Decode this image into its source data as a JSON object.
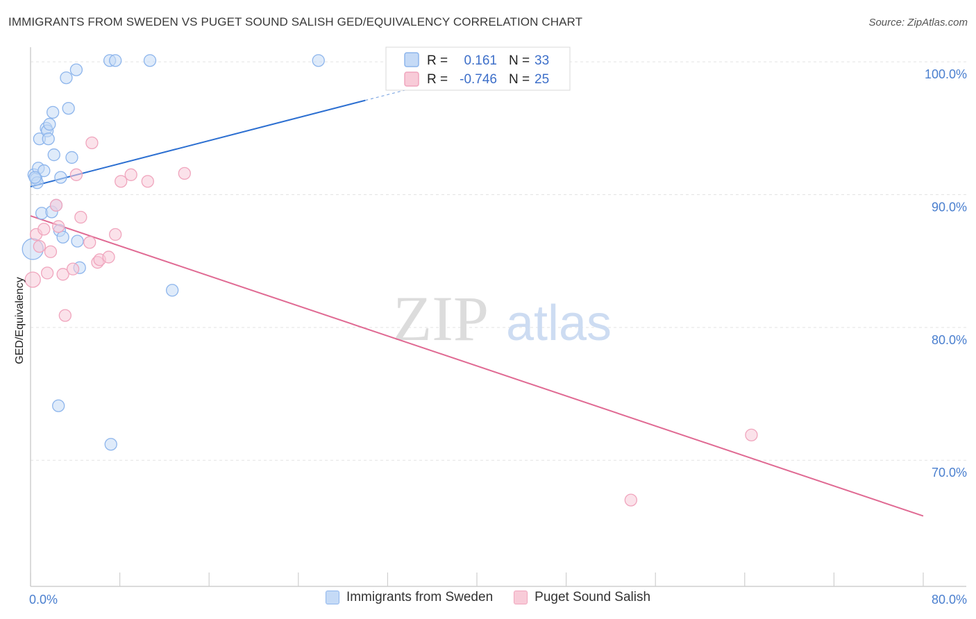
{
  "chart_data": {
    "type": "scatter",
    "title": "IMMIGRANTS FROM SWEDEN VS PUGET SOUND SALISH GED/EQUIVALENCY CORRELATION CHART",
    "source": "Source: ZipAtlas.com",
    "ylabel": "GED/Equivalency",
    "xlabel": "",
    "xlim": [
      0,
      80
    ],
    "ylim": [
      60.5,
      101
    ],
    "x_ticks": [
      "0.0%",
      "80.0%"
    ],
    "y_ticks": [
      {
        "value": 100,
        "label": "100.0%"
      },
      {
        "value": 90,
        "label": "90.0%"
      },
      {
        "value": 80,
        "label": "80.0%"
      },
      {
        "value": 70,
        "label": "70.0%"
      }
    ],
    "watermark": "ZIPatlas",
    "series": [
      {
        "name": "Immigrants from Sweden",
        "color": "#8db5ec",
        "fill": "#c5daf6",
        "line_color": "#2c6fd1",
        "R": "0.161",
        "N": "33",
        "trend": {
          "x": [
            0,
            30
          ],
          "y": [
            90.6,
            97.1
          ]
        },
        "trend_dashed": {
          "x": [
            30,
            80
          ],
          "y": [
            97.1,
            107.9
          ]
        },
        "points": [
          [
            0.2,
            85.9
          ],
          [
            0.3,
            91.5
          ],
          [
            0.5,
            91.2
          ],
          [
            0.6,
            90.9
          ],
          [
            0.7,
            92.0
          ],
          [
            0.8,
            94.2
          ],
          [
            1.0,
            88.6
          ],
          [
            1.2,
            91.8
          ],
          [
            1.4,
            95.0
          ],
          [
            1.5,
            94.8
          ],
          [
            1.6,
            94.2
          ],
          [
            1.7,
            95.3
          ],
          [
            1.9,
            88.7
          ],
          [
            2.0,
            96.2
          ],
          [
            2.1,
            93.0
          ],
          [
            2.3,
            89.2
          ],
          [
            2.5,
            74.1
          ],
          [
            2.6,
            87.3
          ],
          [
            2.7,
            91.3
          ],
          [
            2.9,
            86.8
          ],
          [
            3.2,
            98.8
          ],
          [
            3.4,
            96.5
          ],
          [
            3.7,
            92.8
          ],
          [
            4.1,
            99.4
          ],
          [
            4.2,
            86.5
          ],
          [
            4.4,
            84.5
          ],
          [
            7.1,
            100.1
          ],
          [
            7.2,
            71.2
          ],
          [
            7.6,
            100.1
          ],
          [
            10.7,
            100.1
          ],
          [
            12.7,
            82.8
          ],
          [
            25.8,
            100.1
          ],
          [
            0.4,
            91.3
          ]
        ]
      },
      {
        "name": "Puget Sound Salish",
        "color": "#f0a5bd",
        "fill": "#f8cbd8",
        "line_color": "#e06a93",
        "R": "-0.746",
        "N": "25",
        "trend": {
          "x": [
            0,
            80
          ],
          "y": [
            88.4,
            65.8
          ]
        },
        "points": [
          [
            0.2,
            83.6
          ],
          [
            0.5,
            87.0
          ],
          [
            0.8,
            86.1
          ],
          [
            1.2,
            87.4
          ],
          [
            1.5,
            84.1
          ],
          [
            1.8,
            85.7
          ],
          [
            2.3,
            89.2
          ],
          [
            2.5,
            87.6
          ],
          [
            2.9,
            84.0
          ],
          [
            3.1,
            80.9
          ],
          [
            3.8,
            84.4
          ],
          [
            4.1,
            91.5
          ],
          [
            4.5,
            88.3
          ],
          [
            5.3,
            86.4
          ],
          [
            5.5,
            93.9
          ],
          [
            6.0,
            84.9
          ],
          [
            6.2,
            85.1
          ],
          [
            7.0,
            85.3
          ],
          [
            7.6,
            87.0
          ],
          [
            8.1,
            91.0
          ],
          [
            9.0,
            91.5
          ],
          [
            10.5,
            91.0
          ],
          [
            13.8,
            91.6
          ],
          [
            53.8,
            67.0
          ],
          [
            64.6,
            71.9
          ]
        ]
      }
    ]
  }
}
